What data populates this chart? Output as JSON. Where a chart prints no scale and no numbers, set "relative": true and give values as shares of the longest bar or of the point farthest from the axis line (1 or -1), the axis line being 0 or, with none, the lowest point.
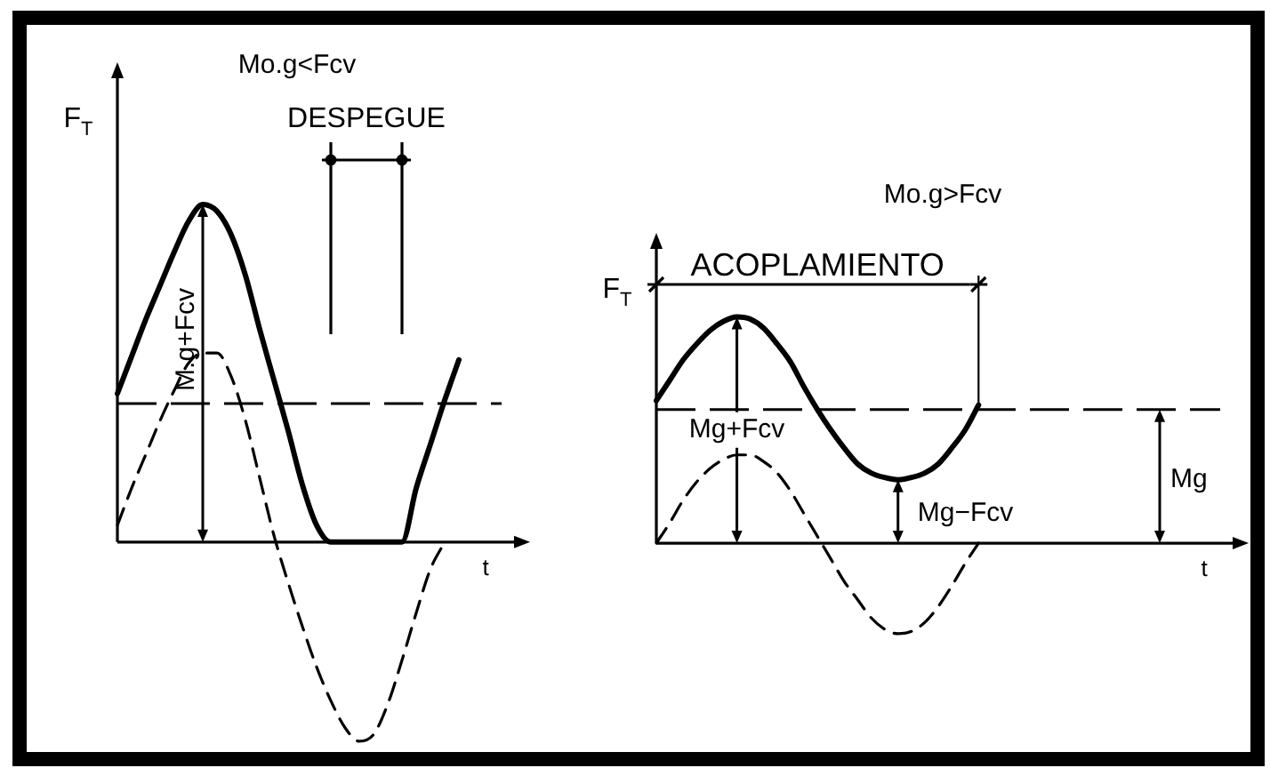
{
  "chart_data": [
    {
      "type": "line",
      "title": "Mo.g<Fcv",
      "xlabel": "t",
      "ylabel": "F$_{T}$",
      "relative": true,
      "tick_labels": false,
      "line_style": "solid",
      "categories": [
        null,
        null,
        null,
        null,
        null,
        null,
        null,
        null,
        null,
        null,
        null,
        null,
        null,
        null,
        null,
        null,
        null,
        null,
        null,
        null,
        null,
        null,
        null,
        null,
        null,
        null,
        null,
        null
      ],
      "series": [
        {
          "color": "#000000",
          "values": [
            0.44,
            0.55,
            0.66,
            0.76,
            0.86,
            0.95,
            1,
            0.98,
            0.91,
            0.79,
            0.63,
            0.48,
            0.33,
            0.17,
            0.05,
            0,
            0,
            0,
            0,
            0,
            0,
            0.16,
            0.29,
            0.42,
            0.54,
            null,
            null,
            null
          ]
        },
        {
          "color": "#000000",
          "line_style": "dashed",
          "values": [
            0.05,
            0.16,
            0.26,
            0.36,
            0.45,
            0.53,
            0.56,
            0.56,
            0.49,
            0.36,
            0.19,
            0.02,
            -0.12,
            -0.25,
            -0.37,
            -0.47,
            -0.55,
            -0.59,
            -0.57,
            -0.48,
            -0.35,
            -0.21,
            -0.08,
            0,
            null,
            null,
            null,
            null
          ]
        }
      ],
      "ref_lines": [
        {
          "axis": "y",
          "value": 0.41,
          "line_style": "dashed"
        }
      ],
      "annotations": [
        "DESPEGUE",
        "M.g+Fcv"
      ]
    },
    {
      "type": "line",
      "title": "Mo.g>Fcv",
      "xlabel": "t",
      "ylabel": "F$_{T}$",
      "relative": true,
      "tick_labels": false,
      "line_style": "solid",
      "categories": [
        null,
        null,
        null,
        null,
        null,
        null,
        null,
        null,
        null,
        null,
        null,
        null,
        null,
        null,
        null,
        null,
        null,
        null,
        null,
        null,
        null,
        null,
        null,
        null,
        null,
        null,
        null,
        null,
        null,
        null,
        null,
        null,
        null,
        null,
        null,
        null,
        null,
        null,
        null,
        null,
        null,
        null,
        null
      ],
      "series": [
        {
          "color": "#000000",
          "values": [
            0.63,
            0.72,
            0.81,
            0.88,
            0.94,
            0.98,
            1,
            0.99,
            0.95,
            0.88,
            0.8,
            0.69,
            0.59,
            0.5,
            0.42,
            0.35,
            0.31,
            0.29,
            0.28,
            0.29,
            0.31,
            0.35,
            0.42,
            0.5,
            0.61,
            null,
            null,
            null,
            null,
            null,
            null,
            null,
            null,
            null,
            null,
            null,
            null,
            null,
            null,
            null,
            null,
            null,
            null
          ]
        },
        {
          "color": "#000000",
          "line_style": "dashed",
          "values": [
            0,
            0.09,
            0.19,
            0.27,
            0.33,
            0.37,
            0.39,
            0.39,
            0.36,
            0.31,
            0.23,
            0.13,
            0.03,
            -0.07,
            -0.17,
            -0.25,
            -0.33,
            -0.38,
            -0.4,
            -0.39,
            -0.35,
            -0.28,
            -0.19,
            -0.09,
            0,
            null,
            null,
            null,
            null,
            null,
            null,
            null,
            null,
            null,
            null,
            null,
            null,
            null,
            null,
            null,
            null,
            null,
            null
          ]
        }
      ],
      "ref_lines": [
        {
          "axis": "y",
          "value": 0.59,
          "label": "Mg",
          "line_style": "dashed"
        }
      ],
      "annotations": [
        "ACOPLAMIENTO",
        "Mg+Fcv",
        "Mg−Fcv"
      ]
    }
  ]
}
